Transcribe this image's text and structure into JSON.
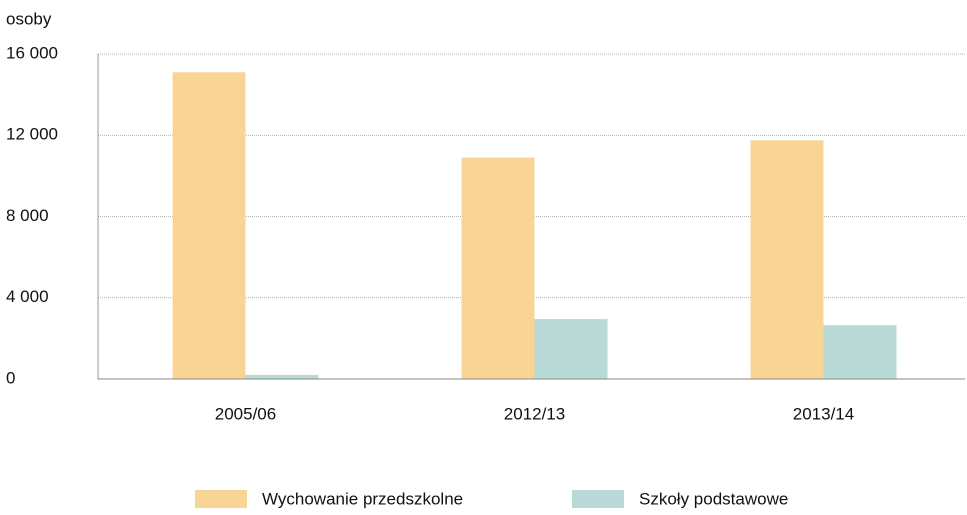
{
  "chart_data": {
    "type": "bar",
    "y_label": "osoby",
    "categories": [
      "2005/06",
      "2012/13",
      "2013/14"
    ],
    "series": [
      {
        "name": "Wychowanie przedszkolne",
        "color": "#f8d595",
        "values": [
          15100,
          10900,
          11750
        ]
      },
      {
        "name": "Szkoły podstawowe",
        "color": "#b9d9d6",
        "values": [
          200,
          2950,
          2650
        ]
      }
    ],
    "ylim": [
      0,
      16000
    ],
    "yticks": [
      0,
      {
        "value": 4000,
        "label": "4 000"
      },
      {
        "value": 8000,
        "label": "8 000"
      },
      {
        "value": 12000,
        "label": "12 000"
      },
      {
        "value": 16000,
        "label": "16 000"
      }
    ],
    "grid": true
  }
}
